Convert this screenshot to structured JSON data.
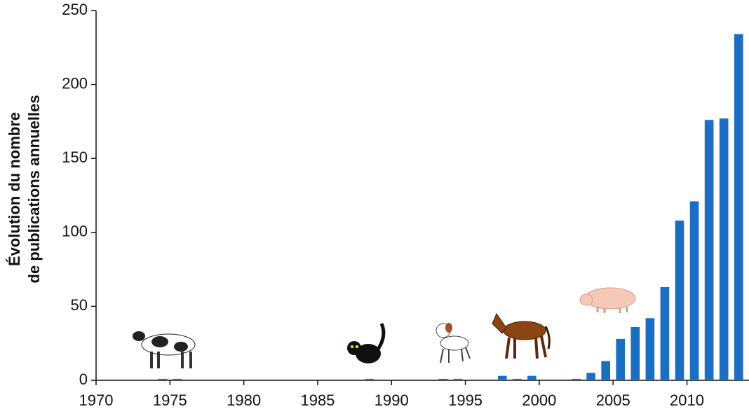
{
  "chart_data": {
    "type": "bar",
    "y_label": [
      "Évolution du nombre",
      "de publications annuelles"
    ],
    "x": [
      1974,
      1975,
      1988,
      1993,
      1994,
      1997,
      1998,
      1999,
      2002,
      2003,
      2004,
      2005,
      2006,
      2007,
      2008,
      2009,
      2010,
      2011,
      2012,
      2013
    ],
    "values": [
      1,
      1,
      1,
      1,
      1,
      3,
      1,
      3,
      1,
      5,
      13,
      28,
      36,
      42,
      63,
      108,
      121,
      176,
      177,
      234
    ],
    "color": "#1b6ec2",
    "xlim": [
      1970,
      2014.2
    ],
    "xticks": [
      1970,
      1975,
      1980,
      1985,
      1990,
      1995,
      2000,
      2005,
      2010
    ],
    "ylim": [
      0,
      250
    ],
    "yticks": [
      0,
      50,
      100,
      150,
      200,
      250
    ],
    "grid": false
  }
}
